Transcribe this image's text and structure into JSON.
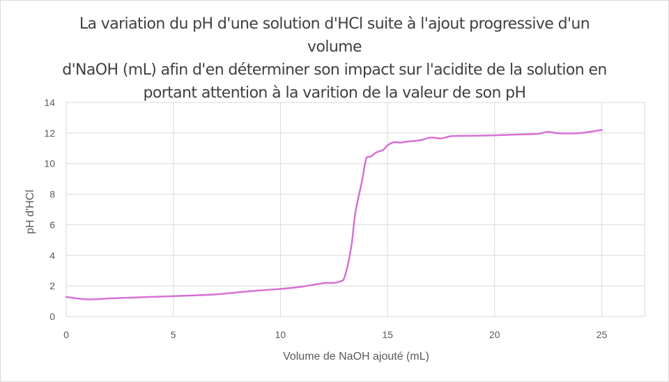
{
  "chart_data": {
    "type": "line",
    "title": "La  variation du pH d'une solution d'HCl suite à l'ajout progressive d'un volume\nd'NaOH (mL)  afin d'en déterminer son impact sur l'acidite  de la solution en\nportant attention à la varition de la valeur de son pH",
    "xlabel": "Volume de NaOH ajouté (mL)",
    "ylabel": "pH d'HCl",
    "xlim": [
      0,
      27
    ],
    "ylim": [
      0,
      14
    ],
    "x_ticks": [
      0,
      5,
      10,
      15,
      20,
      25
    ],
    "y_ticks": [
      0,
      2,
      4,
      6,
      8,
      10,
      12,
      14
    ],
    "x_tick_labels": [
      "0",
      "5",
      "10",
      "15",
      "20",
      "25"
    ],
    "y_tick_labels": [
      "0",
      "2",
      "4",
      "6",
      "8",
      "10",
      "12",
      "14"
    ],
    "grid": true,
    "legend": "none",
    "series": [
      {
        "color": "#d670d6",
        "points": [
          [
            0,
            1.28
          ],
          [
            1,
            1.12
          ],
          [
            2,
            1.18
          ],
          [
            3,
            1.23
          ],
          [
            4,
            1.28
          ],
          [
            5,
            1.33
          ],
          [
            6,
            1.38
          ],
          [
            7,
            1.45
          ],
          [
            8,
            1.58
          ],
          [
            9,
            1.7
          ],
          [
            10,
            1.8
          ],
          [
            11,
            1.95
          ],
          [
            12,
            2.18
          ],
          [
            12.5,
            2.2
          ],
          [
            12.8,
            2.3
          ],
          [
            13,
            2.6
          ],
          [
            13.3,
            4.5
          ],
          [
            13.5,
            6.8
          ],
          [
            13.8,
            8.8
          ],
          [
            14,
            10.3
          ],
          [
            14.2,
            10.45
          ],
          [
            14.5,
            10.75
          ],
          [
            14.8,
            10.9
          ],
          [
            15,
            11.2
          ],
          [
            15.3,
            11.4
          ],
          [
            15.6,
            11.38
          ],
          [
            16,
            11.45
          ],
          [
            16.5,
            11.52
          ],
          [
            17,
            11.7
          ],
          [
            17.5,
            11.65
          ],
          [
            18,
            11.8
          ],
          [
            19,
            11.82
          ],
          [
            20,
            11.85
          ],
          [
            21,
            11.9
          ],
          [
            22,
            11.95
          ],
          [
            22.5,
            12.08
          ],
          [
            23,
            11.98
          ],
          [
            24,
            12.0
          ],
          [
            25,
            12.2
          ]
        ]
      }
    ]
  }
}
